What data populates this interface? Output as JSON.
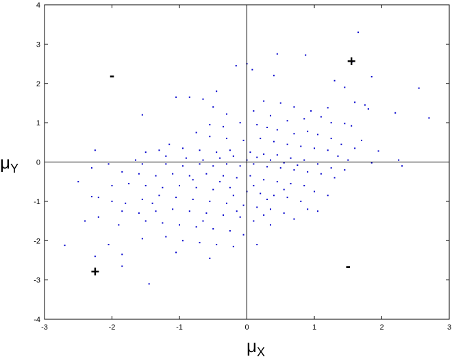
{
  "chart_data": {
    "type": "scatter",
    "title": "",
    "xlabel": {
      "main": "μ",
      "sub": "X"
    },
    "ylabel": {
      "main": "μ",
      "sub": "Y"
    },
    "xlim": [
      -3,
      3
    ],
    "ylim": [
      -4,
      4
    ],
    "xticks": [
      -3,
      -2,
      -1,
      0,
      1,
      2,
      3
    ],
    "yticks": [
      -4,
      -3,
      -2,
      -1,
      0,
      1,
      2,
      3,
      4
    ],
    "grid": false,
    "legend": "none",
    "marker_color": "#0000cc",
    "reference_lines": {
      "x": 0,
      "y": 0
    },
    "quadrant_signs": [
      {
        "text": "+",
        "x": 1.55,
        "y": 2.55
      },
      {
        "text": "-",
        "x": -2.0,
        "y": 2.2
      },
      {
        "text": "+",
        "x": -2.25,
        "y": -2.8
      },
      {
        "text": "-",
        "x": 1.5,
        "y": -2.65
      }
    ],
    "series": [
      {
        "points": [
          [
            1.65,
            3.3
          ],
          [
            0.45,
            2.75
          ],
          [
            0.87,
            2.72
          ],
          [
            1.56,
            2.55
          ],
          [
            0.0,
            2.5
          ],
          [
            -0.16,
            2.45
          ],
          [
            0.08,
            2.35
          ],
          [
            0.4,
            2.2
          ],
          [
            1.85,
            2.17
          ],
          [
            1.3,
            2.07
          ],
          [
            -0.45,
            1.8
          ],
          [
            -0.85,
            1.65
          ],
          [
            -0.65,
            1.6
          ],
          [
            0.25,
            1.55
          ],
          [
            0.5,
            1.5
          ],
          [
            0.7,
            1.4
          ],
          [
            0.95,
            1.3
          ],
          [
            1.2,
            1.38
          ],
          [
            1.45,
            1.9
          ],
          [
            1.6,
            1.52
          ],
          [
            1.75,
            1.45
          ],
          [
            1.8,
            1.35
          ],
          [
            2.55,
            1.88
          ],
          [
            2.7,
            1.12
          ],
          [
            2.2,
            1.25
          ],
          [
            -1.05,
            1.65
          ],
          [
            -1.55,
            1.2
          ],
          [
            -0.5,
            1.4
          ],
          [
            0.1,
            1.3
          ],
          [
            -0.3,
            1.22
          ],
          [
            0.35,
            1.18
          ],
          [
            0.6,
            1.05
          ],
          [
            0.85,
            1.1
          ],
          [
            1.1,
            1.15
          ],
          [
            1.25,
            1.0
          ],
          [
            1.45,
            0.98
          ],
          [
            1.55,
            0.92
          ],
          [
            1.7,
            0.55
          ],
          [
            1.95,
            0.28
          ],
          [
            2.25,
            0.05
          ],
          [
            2.3,
            -0.1
          ],
          [
            -0.55,
            0.95
          ],
          [
            -0.35,
            0.9
          ],
          [
            -0.1,
            1.0
          ],
          [
            0.15,
            0.95
          ],
          [
            0.3,
            0.88
          ],
          [
            0.45,
            0.82
          ],
          [
            0.7,
            0.72
          ],
          [
            0.9,
            0.78
          ],
          [
            1.05,
            0.7
          ],
          [
            1.25,
            0.6
          ],
          [
            1.4,
            0.45
          ],
          [
            1.6,
            0.35
          ],
          [
            1.85,
            -0.02
          ],
          [
            -0.75,
            0.75
          ],
          [
            -0.55,
            0.65
          ],
          [
            -0.3,
            0.6
          ],
          [
            -0.05,
            0.55
          ],
          [
            0.2,
            0.6
          ],
          [
            0.4,
            0.52
          ],
          [
            0.6,
            0.45
          ],
          [
            0.8,
            0.4
          ],
          [
            1.0,
            0.35
          ],
          [
            1.2,
            0.3
          ],
          [
            1.35,
            0.15
          ],
          [
            1.5,
            0.05
          ],
          [
            -1.15,
            0.45
          ],
          [
            -1.3,
            0.3
          ],
          [
            -1.5,
            0.25
          ],
          [
            -1.65,
            0.05
          ],
          [
            -0.95,
            0.35
          ],
          [
            -0.7,
            0.3
          ],
          [
            -0.45,
            0.25
          ],
          [
            -0.25,
            0.3
          ],
          [
            0.05,
            0.25
          ],
          [
            0.25,
            0.2
          ],
          [
            0.45,
            0.18
          ],
          [
            0.65,
            0.1
          ],
          [
            0.85,
            0.05
          ],
          [
            1.05,
            -0.05
          ],
          [
            1.25,
            -0.15
          ],
          [
            1.45,
            -0.2
          ],
          [
            -2.25,
            0.3
          ],
          [
            -2.3,
            -0.15
          ],
          [
            -2.05,
            -0.05
          ],
          [
            -1.55,
            -0.05
          ],
          [
            -1.2,
            -0.05
          ],
          [
            -0.95,
            -0.1
          ],
          [
            -0.7,
            -0.05
          ],
          [
            -0.5,
            -0.1
          ],
          [
            -0.3,
            -0.05
          ],
          [
            -0.1,
            -0.1
          ],
          [
            0.1,
            -0.05
          ],
          [
            0.3,
            -0.12
          ],
          [
            0.5,
            -0.15
          ],
          [
            0.7,
            -0.2
          ],
          [
            0.9,
            -0.25
          ],
          [
            1.1,
            -0.3
          ],
          [
            1.3,
            -0.4
          ],
          [
            -1.85,
            -0.25
          ],
          [
            -1.6,
            -0.3
          ],
          [
            -1.35,
            -0.35
          ],
          [
            -1.1,
            -0.3
          ],
          [
            -0.85,
            -0.35
          ],
          [
            -0.6,
            -0.3
          ],
          [
            -0.35,
            -0.35
          ],
          [
            -0.15,
            -0.4
          ],
          [
            0.05,
            -0.35
          ],
          [
            0.25,
            -0.45
          ],
          [
            0.45,
            -0.5
          ],
          [
            0.65,
            -0.55
          ],
          [
            0.85,
            -0.6
          ],
          [
            1.0,
            -0.75
          ],
          [
            1.2,
            -0.85
          ],
          [
            -2.5,
            -0.5
          ],
          [
            -2.0,
            -0.6
          ],
          [
            -1.75,
            -0.55
          ],
          [
            -1.5,
            -0.6
          ],
          [
            -1.25,
            -0.65
          ],
          [
            -1.0,
            -0.6
          ],
          [
            -0.75,
            -0.65
          ],
          [
            -0.5,
            -0.7
          ],
          [
            -0.25,
            -0.65
          ],
          [
            0.0,
            -0.75
          ],
          [
            0.2,
            -0.8
          ],
          [
            0.4,
            -0.85
          ],
          [
            0.6,
            -0.9
          ],
          [
            0.8,
            -1.0
          ],
          [
            0.9,
            -1.2
          ],
          [
            1.05,
            -1.25
          ],
          [
            -2.3,
            -0.88
          ],
          [
            -2.2,
            -0.9
          ],
          [
            -2.0,
            -1.0
          ],
          [
            -1.8,
            -1.05
          ],
          [
            -1.55,
            -0.95
          ],
          [
            -1.3,
            -0.85
          ],
          [
            -1.05,
            -0.9
          ],
          [
            -0.8,
            -0.95
          ],
          [
            -0.55,
            -1.0
          ],
          [
            -0.3,
            -1.05
          ],
          [
            -0.05,
            -1.1
          ],
          [
            0.15,
            -1.15
          ],
          [
            0.35,
            -1.2
          ],
          [
            0.55,
            -1.3
          ],
          [
            0.7,
            -1.45
          ],
          [
            -1.85,
            -1.25
          ],
          [
            -1.6,
            -1.3
          ],
          [
            -1.35,
            -1.25
          ],
          [
            -1.1,
            -1.2
          ],
          [
            -0.85,
            -1.25
          ],
          [
            -0.6,
            -1.3
          ],
          [
            -0.35,
            -1.35
          ],
          [
            -0.1,
            -1.4
          ],
          [
            0.1,
            -1.5
          ],
          [
            0.35,
            -1.6
          ],
          [
            -2.4,
            -1.5
          ],
          [
            -2.2,
            -1.4
          ],
          [
            -1.9,
            -1.6
          ],
          [
            -1.5,
            -1.5
          ],
          [
            -1.25,
            -1.55
          ],
          [
            -1.0,
            -1.6
          ],
          [
            -0.75,
            -1.65
          ],
          [
            -0.5,
            -1.7
          ],
          [
            -0.25,
            -1.75
          ],
          [
            -0.05,
            -1.85
          ],
          [
            -2.7,
            -2.12
          ],
          [
            -2.05,
            -2.1
          ],
          [
            -1.55,
            -1.95
          ],
          [
            -1.2,
            -1.9
          ],
          [
            -0.95,
            -2.0
          ],
          [
            -0.7,
            -2.05
          ],
          [
            -0.45,
            -2.1
          ],
          [
            -0.2,
            -2.15
          ],
          [
            0.15,
            -2.1
          ],
          [
            -2.25,
            -2.4
          ],
          [
            -1.85,
            -2.35
          ],
          [
            -1.05,
            -2.3
          ],
          [
            -0.55,
            -2.45
          ],
          [
            -1.85,
            -2.65
          ],
          [
            -1.45,
            -3.1
          ],
          [
            -1.2,
            0.15
          ],
          [
            -0.9,
            0.1
          ],
          [
            -0.65,
            0.05
          ],
          [
            -0.4,
            0.1
          ],
          [
            -0.2,
            0.15
          ],
          [
            0.0,
            0.05
          ],
          [
            0.15,
            0.12
          ],
          [
            0.35,
            0.05
          ],
          [
            0.55,
            -0.02
          ],
          [
            0.75,
            -0.08
          ],
          [
            -0.8,
            -0.45
          ],
          [
            -0.4,
            -0.5
          ],
          [
            0.1,
            -0.6
          ],
          [
            0.55,
            -0.7
          ],
          [
            -1.4,
            -1.05
          ],
          [
            -0.2,
            -0.85
          ],
          [
            0.3,
            -0.95
          ],
          [
            -0.65,
            -1.5
          ],
          [
            -0.15,
            -1.25
          ],
          [
            0.25,
            -1.35
          ]
        ]
      }
    ]
  }
}
